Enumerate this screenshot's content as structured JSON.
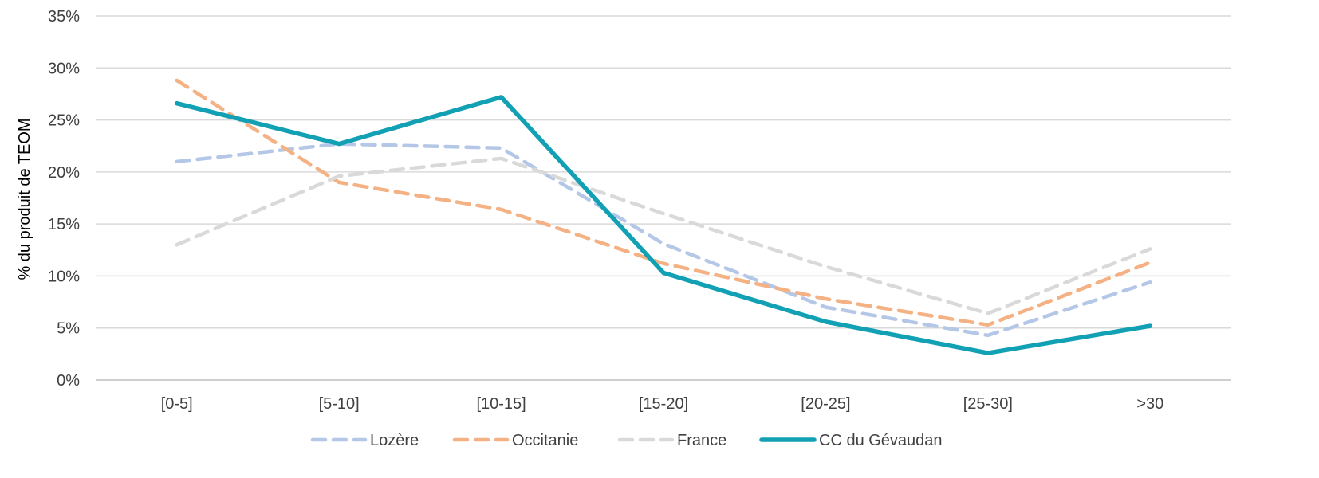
{
  "chart_data": {
    "type": "line",
    "categories": [
      "[0-5]",
      "[5-10]",
      "[10-15]",
      "[15-20]",
      "[20-25]",
      "[25-30]",
      ">30"
    ],
    "ylabel": "% du produit de TEOM",
    "xlabel": "",
    "ylim": [
      0,
      35
    ],
    "y_ticks": [
      0,
      5,
      10,
      15,
      20,
      25,
      30,
      35
    ],
    "y_tick_labels": [
      "0%",
      "5%",
      "10%",
      "15%",
      "20%",
      "25%",
      "30%",
      "35%"
    ],
    "grid": true,
    "legend_position": "bottom",
    "series": [
      {
        "name": "Lozère",
        "values": [
          21.0,
          22.7,
          22.3,
          13.1,
          7.0,
          4.3,
          9.4
        ],
        "color": "#b4c7e7",
        "style": "dashed"
      },
      {
        "name": "Occitanie",
        "values": [
          28.8,
          19.0,
          16.4,
          11.2,
          7.8,
          5.3,
          11.3
        ],
        "color": "#f4b183",
        "style": "dashed"
      },
      {
        "name": "France",
        "values": [
          13.0,
          19.6,
          21.3,
          16.0,
          10.9,
          6.4,
          12.6
        ],
        "color": "#d9d9d9",
        "style": "dashed"
      },
      {
        "name": "CC du Gévaudan",
        "values": [
          26.6,
          22.7,
          27.2,
          10.3,
          5.6,
          2.6,
          5.2
        ],
        "color": "#11a0b4",
        "style": "solid"
      }
    ]
  }
}
